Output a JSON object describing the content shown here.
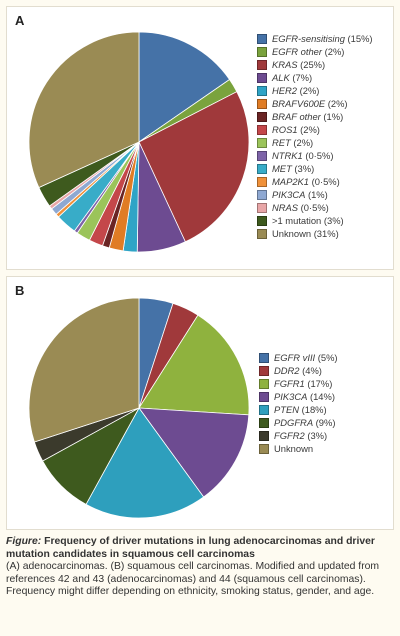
{
  "chart_data": [
    {
      "type": "pie",
      "panel": "A",
      "legend_position": "right",
      "slices": [
        {
          "label": "EGFR-sensitising (15%)",
          "value": 15,
          "color": "#4572a7"
        },
        {
          "label": "EGFR other (2%)",
          "value": 2,
          "color": "#7aa33d"
        },
        {
          "label": "KRAS (25%)",
          "value": 25,
          "color": "#a0393b"
        },
        {
          "label": "ALK (7%)",
          "value": 7,
          "color": "#6d4b91"
        },
        {
          "label": "HER2 (2%)",
          "value": 2,
          "color": "#2fa4c6"
        },
        {
          "label": "BRAFV600E (2%)",
          "value": 2,
          "color": "#e07c24"
        },
        {
          "label": "BRAF other (1%)",
          "value": 1,
          "color": "#6a2424"
        },
        {
          "label": "ROS1 (2%)",
          "value": 2,
          "color": "#c4474a"
        },
        {
          "label": "RET (2%)",
          "value": 2,
          "color": "#9bc45a"
        },
        {
          "label": "NTRK1 (0·5%)",
          "value": 0.5,
          "color": "#7d63a8"
        },
        {
          "label": "MET (3%)",
          "value": 3,
          "color": "#38acc8"
        },
        {
          "label": "MAP2K1 (0·5%)",
          "value": 0.5,
          "color": "#f0913a"
        },
        {
          "label": "PIK3CA (1%)",
          "value": 1,
          "color": "#8ea8d2"
        },
        {
          "label": "NRAS (0·5%)",
          "value": 0.5,
          "color": "#e8a6a7"
        },
        {
          "label": ">1 mutation (3%)",
          "value": 3,
          "color": "#3e5a1e"
        },
        {
          "label": "Unknown (31%)",
          "value": 31,
          "color": "#9a8b54"
        }
      ]
    },
    {
      "type": "pie",
      "panel": "B",
      "legend_position": "right",
      "slices": [
        {
          "label": "EGFR vIII (5%)",
          "value": 5,
          "color": "#4572a7"
        },
        {
          "label": "DDR2 (4%)",
          "value": 4,
          "color": "#a0393b"
        },
        {
          "label": "FGFR1 (17%)",
          "value": 17,
          "color": "#8fb23e"
        },
        {
          "label": "PIK3CA (14%)",
          "value": 14,
          "color": "#6d4b91"
        },
        {
          "label": "PTEN (18%)",
          "value": 18,
          "color": "#2e9fbd"
        },
        {
          "label": "PDGFRA (9%)",
          "value": 9,
          "color": "#3e5a1e"
        },
        {
          "label": "FGFR2 (3%)",
          "value": 3,
          "color": "#3b3a2c"
        },
        {
          "label": "Unknown",
          "value": 30,
          "color": "#9a8b54"
        }
      ]
    }
  ],
  "panels": {
    "a_letter": "A",
    "b_letter": "B"
  },
  "caption": {
    "title": "Figure: Frequency of driver mutations in lung adenocarcinomas and  driver mutation candidates in squamous cell carcinomas",
    "body": "(A) adenocarcinomas. (B) squamous cell carcinomas. Modified and updated from references 42 and 43 (adenocarcinomas) and 44 (squamous cell carcinomas). Frequency might differ depending on ethnicity, smoking status, gender, and age."
  }
}
